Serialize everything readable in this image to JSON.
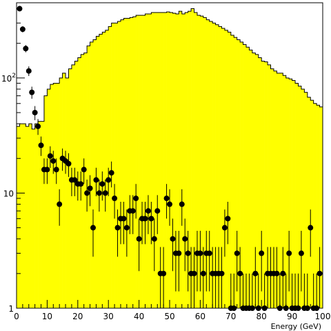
{
  "chart_data": {
    "type": "bar",
    "xlabel": "Energy (GeV)",
    "ylabel": "",
    "xlim": [
      0,
      100
    ],
    "ylim": [
      1,
      450
    ],
    "y_scale": "log",
    "grid": false,
    "legend": "none",
    "x_ticks": [
      "0",
      "10",
      "20",
      "30",
      "40",
      "50",
      "60",
      "70",
      "80",
      "90",
      "100"
    ],
    "y_ticks": [
      {
        "value": 1,
        "label": "1"
      },
      {
        "value": 10,
        "label": "10"
      },
      {
        "value": 100,
        "label": "10",
        "sup": "2"
      }
    ],
    "histogram": {
      "bin_width": 1,
      "fill": "#ffff00",
      "stroke": "#000000",
      "values": [
        38,
        40,
        40,
        38,
        40,
        36,
        40,
        42,
        42,
        70,
        80,
        88,
        90,
        90,
        100,
        110,
        100,
        120,
        130,
        140,
        150,
        160,
        165,
        190,
        205,
        215,
        230,
        240,
        250,
        260,
        280,
        300,
        300,
        310,
        320,
        330,
        330,
        335,
        340,
        350,
        350,
        350,
        360,
        360,
        370,
        370,
        370,
        370,
        370,
        375,
        370,
        365,
        360,
        380,
        360,
        370,
        380,
        400,
        370,
        350,
        345,
        335,
        320,
        310,
        300,
        290,
        280,
        270,
        260,
        250,
        235,
        225,
        215,
        205,
        195,
        185,
        175,
        165,
        160,
        150,
        140,
        138,
        130,
        120,
        115,
        110,
        110,
        105,
        100,
        98,
        95,
        90,
        85,
        80,
        75,
        68,
        64,
        60,
        58,
        56
      ]
    },
    "points": {
      "name": "",
      "marker_color": "#000000",
      "x": [
        1,
        2,
        3,
        4,
        5,
        6,
        7,
        8,
        9,
        10,
        11,
        12,
        13,
        14,
        15,
        16,
        17,
        18,
        19,
        20,
        21,
        22,
        23,
        24,
        25,
        26,
        27,
        28,
        29,
        30,
        31,
        32,
        33,
        34,
        35,
        36,
        37,
        38,
        39,
        40,
        41,
        42,
        43,
        44,
        45,
        46,
        47,
        48,
        49,
        50,
        51,
        52,
        53,
        54,
        55,
        56,
        57,
        58,
        59,
        60,
        61,
        62,
        63,
        64,
        65,
        66,
        67,
        68,
        69,
        70,
        71,
        72,
        73,
        74,
        75,
        76,
        77,
        78,
        79,
        80,
        81,
        82,
        83,
        84,
        85,
        86,
        87,
        88,
        89,
        90,
        91,
        92,
        93,
        94,
        95,
        96,
        97,
        98,
        99
      ],
      "y": [
        400,
        265,
        180,
        115,
        75,
        50,
        38,
        26,
        16,
        16,
        21,
        19,
        16,
        8,
        20,
        19,
        18,
        13,
        13,
        12,
        12,
        16,
        10,
        11,
        5,
        13,
        10,
        12,
        10,
        13,
        15,
        9,
        5,
        6,
        6,
        5,
        7,
        7,
        9,
        4,
        6,
        6,
        7,
        6,
        4,
        7,
        2,
        2,
        9,
        8,
        4,
        3,
        3,
        8,
        4,
        3,
        2,
        2,
        3,
        3,
        2,
        3,
        3,
        2,
        2,
        2,
        2,
        5,
        6,
        1,
        1,
        3,
        2,
        1,
        1,
        1,
        1,
        2,
        1,
        3,
        1,
        2,
        2,
        2,
        2,
        1,
        2,
        1,
        3,
        1,
        1,
        1,
        3,
        1,
        1,
        5,
        1,
        1,
        2
      ],
      "err_low": [
        20,
        16,
        13,
        11,
        9,
        7,
        6,
        5,
        4,
        4,
        4.5,
        4.3,
        4,
        2.8,
        4.4,
        4.3,
        4.2,
        3.6,
        3.6,
        3.4,
        3.4,
        4,
        3.1,
        3.3,
        2.2,
        3.6,
        3.1,
        3.4,
        3.1,
        3.6,
        3.8,
        3,
        2.2,
        2.4,
        2.4,
        2.2,
        2.6,
        2.6,
        3,
        1.9,
        2.4,
        2.4,
        2.6,
        2.4,
        1.9,
        2.6,
        1.3,
        1.3,
        3,
        2.8,
        1.9,
        1.6,
        1.6,
        2.8,
        1.9,
        1.6,
        1.3,
        1.3,
        1.6,
        1.6,
        1.3,
        1.6,
        1.6,
        1.3,
        1.3,
        1.3,
        1.3,
        2.2,
        2.4,
        0.9,
        0.9,
        1.6,
        1.3,
        0.9,
        0.9,
        0.9,
        0.9,
        1.3,
        0.9,
        1.6,
        0.9,
        1.3,
        1.3,
        1.3,
        1.3,
        0.9,
        1.3,
        0.9,
        1.6,
        0.9,
        0.9,
        0.9,
        1.6,
        0.9,
        0.9,
        2.2,
        0.9,
        0.9,
        1.3
      ],
      "err_high": [
        20,
        16,
        13,
        11,
        9,
        7,
        6,
        5,
        4,
        4,
        4.5,
        4.3,
        4,
        2.8,
        4.4,
        4.3,
        4.2,
        3.6,
        3.6,
        3.4,
        3.4,
        4,
        3.1,
        3.3,
        2.2,
        3.6,
        3.1,
        3.4,
        3.1,
        3.6,
        3.8,
        3,
        2.2,
        2.4,
        2.4,
        2.2,
        2.6,
        2.6,
        3,
        2,
        2.4,
        2.4,
        2.6,
        2.4,
        2,
        2.6,
        1.4,
        1.4,
        3,
        2.8,
        2,
        1.7,
        1.7,
        2.8,
        2,
        1.7,
        1.4,
        1.4,
        1.7,
        1.7,
        1.4,
        1.7,
        1.7,
        1.4,
        1.4,
        1.4,
        1.4,
        2.2,
        2.4,
        1,
        1,
        1.7,
        1.4,
        1,
        1,
        1,
        1,
        1.4,
        1,
        1.7,
        1,
        1.4,
        1.4,
        1.4,
        1.4,
        1,
        1.4,
        1,
        1.7,
        1,
        1,
        1,
        1.7,
        1,
        1,
        2.2,
        1,
        1,
        1.4
      ]
    }
  }
}
